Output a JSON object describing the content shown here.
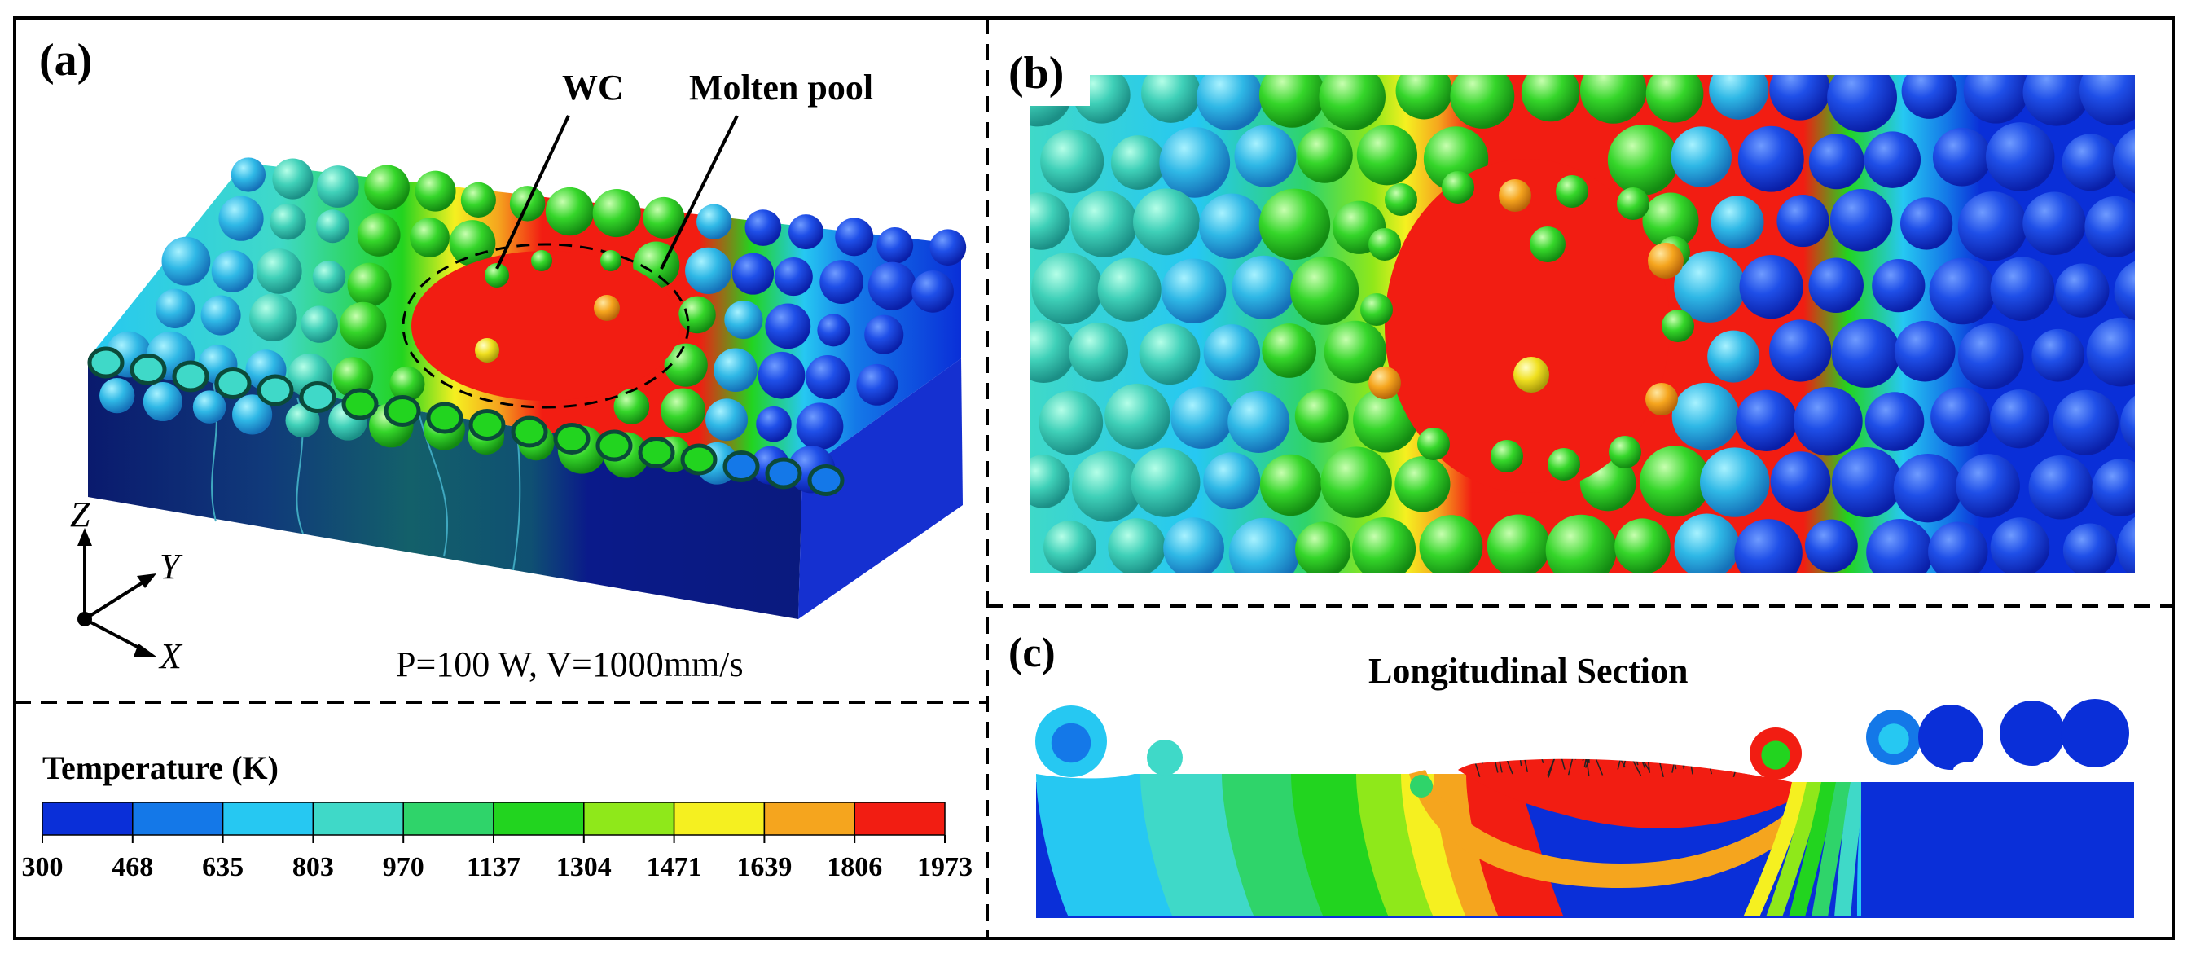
{
  "panels": {
    "a": {
      "label": "(a)",
      "annotation_wc": "WC",
      "annotation_pool": "Molten pool",
      "process_params": "P=100 W, V=1000mm/s"
    },
    "b": {
      "label": "(b)"
    },
    "c": {
      "label": "(c)",
      "title": "Longitudinal Section"
    }
  },
  "axes": {
    "z": "Z",
    "y": "Y",
    "x": "X"
  },
  "legend": {
    "title": "Temperature (K)",
    "ticks": [
      "300",
      "468",
      "635",
      "803",
      "970",
      "1137",
      "1304",
      "1471",
      "1639",
      "1806",
      "1973"
    ],
    "colors": [
      "#0a2fd8",
      "#1478e8",
      "#26c8f2",
      "#3fd9c8",
      "#2fd46a",
      "#22d41f",
      "#8fe81a",
      "#f5f020",
      "#f5a51e",
      "#f21d12"
    ]
  },
  "colors": {
    "cold": "#0a2fd8",
    "cool": "#1478e8",
    "cyan": "#26c8f2",
    "teal": "#3fd9c8",
    "green": "#22d41f",
    "lime": "#8fe81a",
    "yellow": "#f5f020",
    "orange": "#f5a51e",
    "red": "#f21d12",
    "dark_blue": "#0a1a6e"
  }
}
